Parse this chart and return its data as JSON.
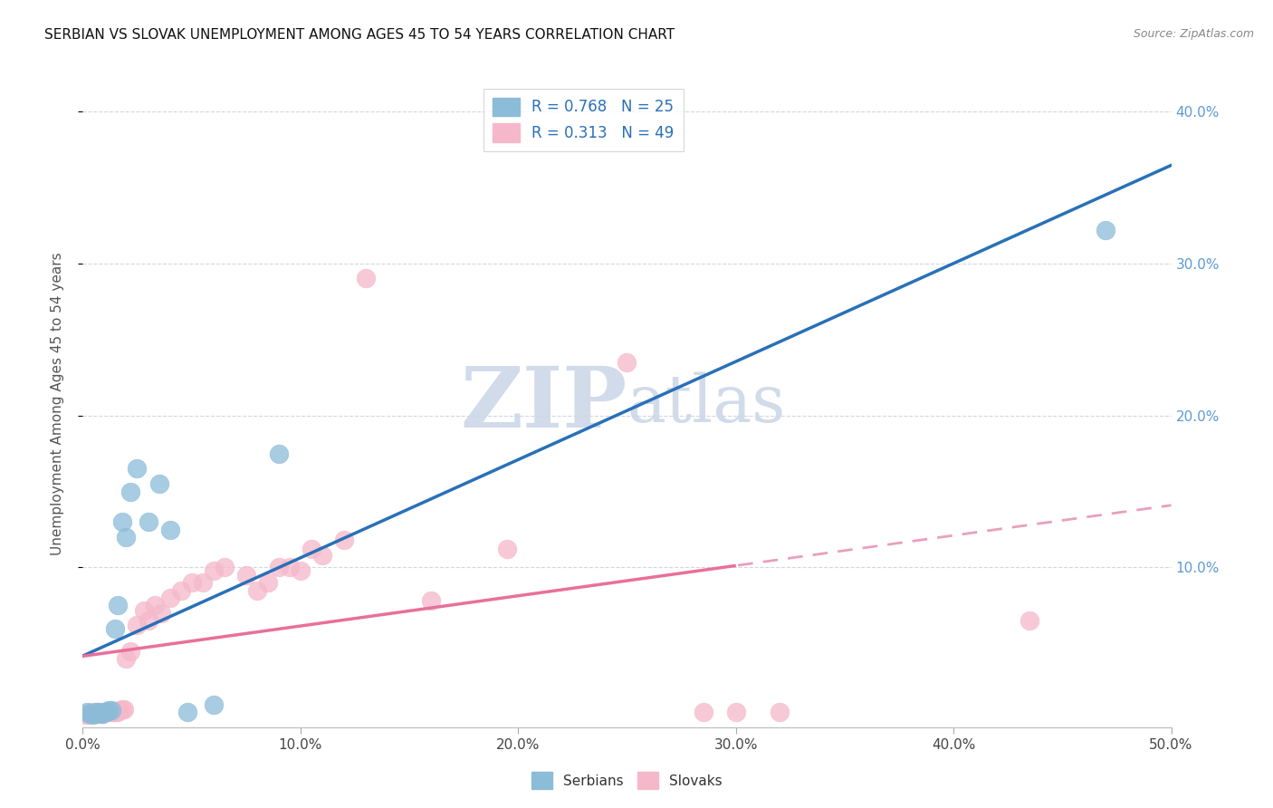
{
  "title": "SERBIAN VS SLOVAK UNEMPLOYMENT AMONG AGES 45 TO 54 YEARS CORRELATION CHART",
  "source": "Source: ZipAtlas.com",
  "ylabel": "Unemployment Among Ages 45 to 54 years",
  "xlim": [
    0.0,
    0.5
  ],
  "ylim": [
    -0.005,
    0.42
  ],
  "xticks": [
    0.0,
    0.1,
    0.2,
    0.3,
    0.4,
    0.5
  ],
  "yticks": [
    0.1,
    0.2,
    0.3,
    0.4
  ],
  "ytick_labels": [
    "10.0%",
    "20.0%",
    "30.0%",
    "40.0%"
  ],
  "xtick_labels": [
    "0.0%",
    "10.0%",
    "20.0%",
    "30.0%",
    "40.0%",
    "50.0%"
  ],
  "serbian_color": "#8bbcd8",
  "slovak_color": "#f5b8ca",
  "serbian_line_color": "#2970b8",
  "slovak_line_color": "#e8709a",
  "slovak_dashed_color": "#e8a0bc",
  "watermark_color": "#ccd8e8",
  "legend_text_color": "#2970b8",
  "grid_color": "#d0d8e0",
  "serbian_x": [
    0.002,
    0.003,
    0.004,
    0.005,
    0.006,
    0.007,
    0.008,
    0.009,
    0.01,
    0.011,
    0.012,
    0.013,
    0.015,
    0.016,
    0.018,
    0.02,
    0.022,
    0.025,
    0.03,
    0.035,
    0.04,
    0.048,
    0.06,
    0.09,
    0.47
  ],
  "serbian_y": [
    0.005,
    0.004,
    0.004,
    0.003,
    0.005,
    0.005,
    0.004,
    0.004,
    0.005,
    0.005,
    0.006,
    0.006,
    0.06,
    0.075,
    0.13,
    0.12,
    0.15,
    0.165,
    0.13,
    0.155,
    0.125,
    0.005,
    0.01,
    0.175,
    0.322
  ],
  "slovak_x": [
    0.001,
    0.002,
    0.003,
    0.004,
    0.005,
    0.006,
    0.007,
    0.008,
    0.009,
    0.01,
    0.011,
    0.012,
    0.013,
    0.014,
    0.015,
    0.016,
    0.017,
    0.018,
    0.019,
    0.02,
    0.022,
    0.025,
    0.028,
    0.03,
    0.033,
    0.036,
    0.04,
    0.045,
    0.05,
    0.055,
    0.06,
    0.065,
    0.075,
    0.08,
    0.085,
    0.09,
    0.095,
    0.1,
    0.105,
    0.11,
    0.12,
    0.13,
    0.16,
    0.195,
    0.25,
    0.285,
    0.3,
    0.32,
    0.435
  ],
  "slovak_y": [
    0.003,
    0.004,
    0.003,
    0.005,
    0.004,
    0.004,
    0.005,
    0.005,
    0.004,
    0.005,
    0.005,
    0.005,
    0.005,
    0.005,
    0.005,
    0.005,
    0.006,
    0.007,
    0.007,
    0.04,
    0.045,
    0.062,
    0.072,
    0.065,
    0.075,
    0.07,
    0.08,
    0.085,
    0.09,
    0.09,
    0.098,
    0.1,
    0.095,
    0.085,
    0.09,
    0.1,
    0.1,
    0.098,
    0.112,
    0.108,
    0.118,
    0.29,
    0.078,
    0.112,
    0.235,
    0.005,
    0.005,
    0.005,
    0.065
  ],
  "solid_line_end": 0.3
}
